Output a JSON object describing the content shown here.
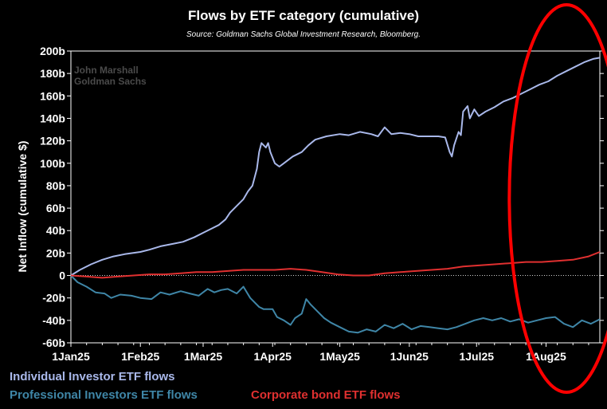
{
  "chart_data": {
    "type": "line",
    "title": "Flows by ETF category (cumulative)",
    "subtitle": "Source: Goldman Sachs Global Investment Research, Bloomberg.",
    "watermark": [
      "John Marshall",
      "Goldman Sachs"
    ],
    "ylabel": "Net Inflow (cumulative $)",
    "xlabel": "",
    "ylim": [
      -60,
      200
    ],
    "yticks": [
      -60,
      -40,
      -20,
      0,
      20,
      40,
      60,
      80,
      100,
      120,
      140,
      160,
      180,
      200
    ],
    "ytick_labels": [
      "-60b",
      "-40b",
      "-20b",
      "0",
      "20b",
      "40b",
      "60b",
      "80b",
      "100b",
      "120b",
      "140b",
      "160b",
      "180b",
      "200b"
    ],
    "xlim": [
      "2025-01-01",
      "2025-08-25"
    ],
    "xticks": [
      "2025-01-01",
      "2025-02-01",
      "2025-03-01",
      "2025-04-01",
      "2025-05-01",
      "2025-06-01",
      "2025-07-01",
      "2025-08-01"
    ],
    "xtick_labels": [
      "1Jan25",
      "1Feb25",
      "1Mar25",
      "1Apr25",
      "1May25",
      "1Jun25",
      "1Jul25",
      "1Aug25"
    ],
    "grid": false,
    "legend_position": "bottom-left",
    "series": [
      {
        "name": "Individual Investor ETF flows",
        "color": "#a9b8ea",
        "points": [
          [
            "2025-01-01",
            0
          ],
          [
            "2025-01-05",
            5
          ],
          [
            "2025-01-10",
            10
          ],
          [
            "2025-01-15",
            14
          ],
          [
            "2025-01-20",
            17
          ],
          [
            "2025-01-25",
            19
          ],
          [
            "2025-02-01",
            21
          ],
          [
            "2025-02-05",
            23
          ],
          [
            "2025-02-10",
            26
          ],
          [
            "2025-02-15",
            28
          ],
          [
            "2025-02-20",
            30
          ],
          [
            "2025-02-25",
            34
          ],
          [
            "2025-03-01",
            38
          ],
          [
            "2025-03-05",
            42
          ],
          [
            "2025-03-08",
            45
          ],
          [
            "2025-03-11",
            50
          ],
          [
            "2025-03-13",
            56
          ],
          [
            "2025-03-15",
            60
          ],
          [
            "2025-03-17",
            64
          ],
          [
            "2025-03-19",
            68
          ],
          [
            "2025-03-21",
            75
          ],
          [
            "2025-03-23",
            80
          ],
          [
            "2025-03-25",
            95
          ],
          [
            "2025-03-26",
            110
          ],
          [
            "2025-03-27",
            118
          ],
          [
            "2025-03-29",
            114
          ],
          [
            "2025-03-30",
            118
          ],
          [
            "2025-03-31",
            110
          ],
          [
            "2025-04-02",
            100
          ],
          [
            "2025-04-04",
            97
          ],
          [
            "2025-04-06",
            100
          ],
          [
            "2025-04-10",
            106
          ],
          [
            "2025-04-14",
            110
          ],
          [
            "2025-04-17",
            116
          ],
          [
            "2025-04-20",
            121
          ],
          [
            "2025-04-25",
            124
          ],
          [
            "2025-05-01",
            126
          ],
          [
            "2025-05-05",
            125
          ],
          [
            "2025-05-10",
            128
          ],
          [
            "2025-05-15",
            126
          ],
          [
            "2025-05-18",
            124
          ],
          [
            "2025-05-21",
            132
          ],
          [
            "2025-05-24",
            126
          ],
          [
            "2025-05-28",
            127
          ],
          [
            "2025-06-01",
            126
          ],
          [
            "2025-06-05",
            124
          ],
          [
            "2025-06-10",
            124
          ],
          [
            "2025-06-14",
            124
          ],
          [
            "2025-06-17",
            123
          ],
          [
            "2025-06-19",
            110
          ],
          [
            "2025-06-20",
            106
          ],
          [
            "2025-06-21",
            116
          ],
          [
            "2025-06-23",
            128
          ],
          [
            "2025-06-24",
            125
          ],
          [
            "2025-06-25",
            146
          ],
          [
            "2025-06-27",
            151
          ],
          [
            "2025-06-28",
            140
          ],
          [
            "2025-06-30",
            148
          ],
          [
            "2025-07-02",
            142
          ],
          [
            "2025-07-05",
            146
          ],
          [
            "2025-07-09",
            150
          ],
          [
            "2025-07-13",
            155
          ],
          [
            "2025-07-17",
            158
          ],
          [
            "2025-07-21",
            162
          ],
          [
            "2025-07-25",
            166
          ],
          [
            "2025-07-29",
            170
          ],
          [
            "2025-08-02",
            173
          ],
          [
            "2025-08-06",
            178
          ],
          [
            "2025-08-10",
            182
          ],
          [
            "2025-08-14",
            186
          ],
          [
            "2025-08-18",
            190
          ],
          [
            "2025-08-22",
            193
          ],
          [
            "2025-08-25",
            194
          ]
        ]
      },
      {
        "name": "Professional Investors ETF flows",
        "color": "#3f86a7",
        "points": [
          [
            "2025-01-01",
            0
          ],
          [
            "2025-01-04",
            -6
          ],
          [
            "2025-01-08",
            -10
          ],
          [
            "2025-01-12",
            -15
          ],
          [
            "2025-01-16",
            -16
          ],
          [
            "2025-01-19",
            -20
          ],
          [
            "2025-01-23",
            -17
          ],
          [
            "2025-01-28",
            -18
          ],
          [
            "2025-02-01",
            -20
          ],
          [
            "2025-02-06",
            -21
          ],
          [
            "2025-02-10",
            -15
          ],
          [
            "2025-02-14",
            -17
          ],
          [
            "2025-02-19",
            -14
          ],
          [
            "2025-02-23",
            -16
          ],
          [
            "2025-02-27",
            -18
          ],
          [
            "2025-03-03",
            -12
          ],
          [
            "2025-03-06",
            -15
          ],
          [
            "2025-03-09",
            -13
          ],
          [
            "2025-03-12",
            -12
          ],
          [
            "2025-03-16",
            -16
          ],
          [
            "2025-03-19",
            -10
          ],
          [
            "2025-03-22",
            -20
          ],
          [
            "2025-03-26",
            -28
          ],
          [
            "2025-03-28",
            -30
          ],
          [
            "2025-04-01",
            -30
          ],
          [
            "2025-04-03",
            -37
          ],
          [
            "2025-04-06",
            -40
          ],
          [
            "2025-04-09",
            -44
          ],
          [
            "2025-04-11",
            -38
          ],
          [
            "2025-04-14",
            -34
          ],
          [
            "2025-04-16",
            -21
          ],
          [
            "2025-04-18",
            -26
          ],
          [
            "2025-04-21",
            -32
          ],
          [
            "2025-04-24",
            -38
          ],
          [
            "2025-04-27",
            -42
          ],
          [
            "2025-05-01",
            -46
          ],
          [
            "2025-05-05",
            -50
          ],
          [
            "2025-05-09",
            -51
          ],
          [
            "2025-05-13",
            -48
          ],
          [
            "2025-05-17",
            -50
          ],
          [
            "2025-05-21",
            -44
          ],
          [
            "2025-05-25",
            -47
          ],
          [
            "2025-05-29",
            -43
          ],
          [
            "2025-06-02",
            -48
          ],
          [
            "2025-06-06",
            -45
          ],
          [
            "2025-06-10",
            -46
          ],
          [
            "2025-06-14",
            -47
          ],
          [
            "2025-06-18",
            -48
          ],
          [
            "2025-06-22",
            -46
          ],
          [
            "2025-06-26",
            -43
          ],
          [
            "2025-06-30",
            -40
          ],
          [
            "2025-07-04",
            -38
          ],
          [
            "2025-07-08",
            -40
          ],
          [
            "2025-07-12",
            -38
          ],
          [
            "2025-07-16",
            -41
          ],
          [
            "2025-07-20",
            -39
          ],
          [
            "2025-07-24",
            -42
          ],
          [
            "2025-07-28",
            -40
          ],
          [
            "2025-08-01",
            -38
          ],
          [
            "2025-08-05",
            -37
          ],
          [
            "2025-08-09",
            -43
          ],
          [
            "2025-08-13",
            -46
          ],
          [
            "2025-08-17",
            -40
          ],
          [
            "2025-08-21",
            -43
          ],
          [
            "2025-08-25",
            -39
          ]
        ]
      },
      {
        "name": "Corporate bond ETF flows",
        "color": "#e03030",
        "points": [
          [
            "2025-01-01",
            0
          ],
          [
            "2025-01-08",
            -1
          ],
          [
            "2025-01-15",
            -2
          ],
          [
            "2025-01-22",
            -1
          ],
          [
            "2025-01-29",
            0
          ],
          [
            "2025-02-05",
            1
          ],
          [
            "2025-02-12",
            1
          ],
          [
            "2025-02-19",
            2
          ],
          [
            "2025-02-26",
            3
          ],
          [
            "2025-03-05",
            3
          ],
          [
            "2025-03-12",
            4
          ],
          [
            "2025-03-19",
            5
          ],
          [
            "2025-03-26",
            5
          ],
          [
            "2025-04-02",
            5
          ],
          [
            "2025-04-09",
            6
          ],
          [
            "2025-04-16",
            5
          ],
          [
            "2025-04-23",
            3
          ],
          [
            "2025-04-30",
            1
          ],
          [
            "2025-05-07",
            0
          ],
          [
            "2025-05-14",
            0
          ],
          [
            "2025-05-21",
            2
          ],
          [
            "2025-05-28",
            3
          ],
          [
            "2025-06-04",
            4
          ],
          [
            "2025-06-11",
            5
          ],
          [
            "2025-06-18",
            6
          ],
          [
            "2025-06-25",
            8
          ],
          [
            "2025-07-02",
            9
          ],
          [
            "2025-07-09",
            10
          ],
          [
            "2025-07-16",
            11
          ],
          [
            "2025-07-23",
            12
          ],
          [
            "2025-07-30",
            12
          ],
          [
            "2025-08-06",
            13
          ],
          [
            "2025-08-13",
            14
          ],
          [
            "2025-08-20",
            17
          ],
          [
            "2025-08-25",
            21
          ]
        ]
      }
    ]
  },
  "legend": {
    "row1": "Individual Investor ETF flows",
    "row2a": "Professional Investors ETF flows",
    "row2b": "Corporate bond ETF flows"
  },
  "annotation": {
    "shape": "ellipse",
    "color": "#ff0000",
    "covers_period": [
      "2025-07-22",
      "2025-08-25"
    ]
  }
}
